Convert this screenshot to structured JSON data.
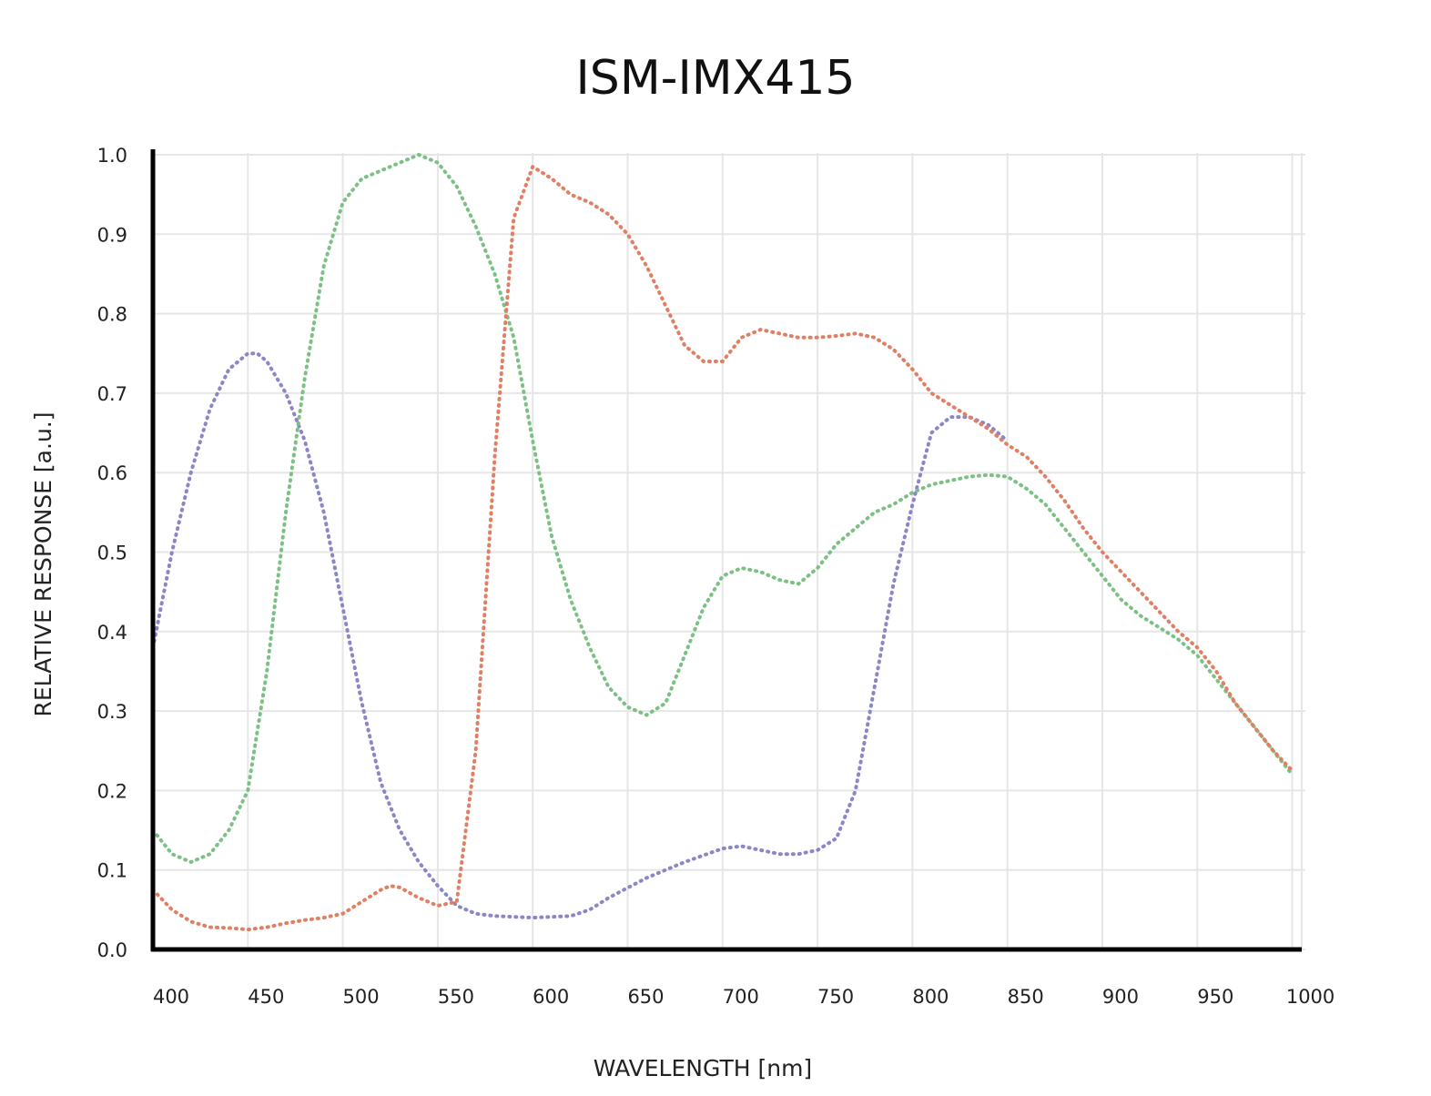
{
  "chart_data": {
    "type": "line",
    "title": "ISM-IMX415",
    "xlabel": "WAVELENGTH [nm]",
    "ylabel": "RELATIVE RESPONSE [a.u.]",
    "xlim": [
      400,
      1005
    ],
    "ylim": [
      0,
      1.0
    ],
    "x_ticks": [
      "400",
      "450",
      "500",
      "550",
      "600",
      "650",
      "700",
      "750",
      "800",
      "850",
      "900",
      "950",
      "1000"
    ],
    "y_ticks": [
      "0.0",
      "0.1",
      "0.2",
      "0.3",
      "0.4",
      "0.5",
      "0.6",
      "0.7",
      "0.8",
      "0.9",
      "1.0"
    ],
    "grid": true,
    "legend": "none",
    "series": [
      {
        "color": "#8a86c8",
        "points": [
          [
            400,
            0.38
          ],
          [
            410,
            0.5
          ],
          [
            420,
            0.6
          ],
          [
            430,
            0.68
          ],
          [
            440,
            0.73
          ],
          [
            450,
            0.75
          ],
          [
            455,
            0.75
          ],
          [
            460,
            0.74
          ],
          [
            470,
            0.7
          ],
          [
            480,
            0.64
          ],
          [
            490,
            0.55
          ],
          [
            500,
            0.43
          ],
          [
            510,
            0.31
          ],
          [
            520,
            0.21
          ],
          [
            530,
            0.15
          ],
          [
            540,
            0.11
          ],
          [
            550,
            0.08
          ],
          [
            560,
            0.055
          ],
          [
            570,
            0.045
          ],
          [
            580,
            0.042
          ],
          [
            600,
            0.04
          ],
          [
            620,
            0.042
          ],
          [
            630,
            0.05
          ],
          [
            640,
            0.065
          ],
          [
            660,
            0.09
          ],
          [
            680,
            0.11
          ],
          [
            700,
            0.127
          ],
          [
            710,
            0.13
          ],
          [
            720,
            0.125
          ],
          [
            730,
            0.12
          ],
          [
            740,
            0.12
          ],
          [
            750,
            0.125
          ],
          [
            760,
            0.14
          ],
          [
            770,
            0.2
          ],
          [
            780,
            0.33
          ],
          [
            790,
            0.46
          ],
          [
            800,
            0.56
          ],
          [
            810,
            0.65
          ],
          [
            820,
            0.67
          ],
          [
            830,
            0.67
          ],
          [
            840,
            0.66
          ],
          [
            850,
            0.64
          ]
        ]
      },
      {
        "color": "#7cc184",
        "points": [
          [
            400,
            0.15
          ],
          [
            410,
            0.12
          ],
          [
            420,
            0.11
          ],
          [
            430,
            0.12
          ],
          [
            440,
            0.15
          ],
          [
            450,
            0.2
          ],
          [
            460,
            0.35
          ],
          [
            470,
            0.55
          ],
          [
            480,
            0.72
          ],
          [
            490,
            0.86
          ],
          [
            500,
            0.94
          ],
          [
            510,
            0.97
          ],
          [
            520,
            0.98
          ],
          [
            530,
            0.99
          ],
          [
            540,
            1.0
          ],
          [
            550,
            0.99
          ],
          [
            560,
            0.96
          ],
          [
            570,
            0.91
          ],
          [
            580,
            0.85
          ],
          [
            590,
            0.77
          ],
          [
            600,
            0.64
          ],
          [
            610,
            0.52
          ],
          [
            620,
            0.44
          ],
          [
            630,
            0.38
          ],
          [
            640,
            0.33
          ],
          [
            650,
            0.305
          ],
          [
            660,
            0.295
          ],
          [
            670,
            0.31
          ],
          [
            680,
            0.37
          ],
          [
            690,
            0.43
          ],
          [
            700,
            0.47
          ],
          [
            710,
            0.48
          ],
          [
            720,
            0.475
          ],
          [
            730,
            0.465
          ],
          [
            740,
            0.46
          ],
          [
            750,
            0.48
          ],
          [
            760,
            0.51
          ],
          [
            770,
            0.53
          ],
          [
            780,
            0.55
          ],
          [
            790,
            0.56
          ],
          [
            800,
            0.575
          ],
          [
            810,
            0.585
          ],
          [
            820,
            0.59
          ],
          [
            830,
            0.595
          ],
          [
            840,
            0.597
          ],
          [
            850,
            0.595
          ],
          [
            860,
            0.58
          ],
          [
            870,
            0.56
          ],
          [
            880,
            0.53
          ],
          [
            890,
            0.5
          ],
          [
            900,
            0.47
          ],
          [
            910,
            0.44
          ],
          [
            920,
            0.42
          ],
          [
            930,
            0.405
          ],
          [
            940,
            0.39
          ],
          [
            950,
            0.37
          ],
          [
            960,
            0.34
          ],
          [
            970,
            0.31
          ],
          [
            980,
            0.28
          ],
          [
            990,
            0.25
          ],
          [
            1000,
            0.22
          ]
        ]
      },
      {
        "color": "#e07f64",
        "points": [
          [
            400,
            0.075
          ],
          [
            410,
            0.05
          ],
          [
            420,
            0.035
          ],
          [
            430,
            0.028
          ],
          [
            440,
            0.027
          ],
          [
            450,
            0.025
          ],
          [
            460,
            0.028
          ],
          [
            470,
            0.033
          ],
          [
            480,
            0.037
          ],
          [
            490,
            0.04
          ],
          [
            500,
            0.045
          ],
          [
            510,
            0.06
          ],
          [
            520,
            0.075
          ],
          [
            525,
            0.08
          ],
          [
            530,
            0.078
          ],
          [
            540,
            0.065
          ],
          [
            550,
            0.055
          ],
          [
            560,
            0.06
          ],
          [
            570,
            0.25
          ],
          [
            580,
            0.62
          ],
          [
            590,
            0.92
          ],
          [
            600,
            0.985
          ],
          [
            610,
            0.97
          ],
          [
            620,
            0.95
          ],
          [
            630,
            0.94
          ],
          [
            640,
            0.925
          ],
          [
            650,
            0.9
          ],
          [
            660,
            0.86
          ],
          [
            670,
            0.81
          ],
          [
            680,
            0.76
          ],
          [
            690,
            0.74
          ],
          [
            700,
            0.74
          ],
          [
            710,
            0.77
          ],
          [
            720,
            0.78
          ],
          [
            730,
            0.775
          ],
          [
            740,
            0.77
          ],
          [
            750,
            0.77
          ],
          [
            760,
            0.772
          ],
          [
            770,
            0.775
          ],
          [
            780,
            0.77
          ],
          [
            790,
            0.755
          ],
          [
            800,
            0.73
          ],
          [
            810,
            0.7
          ],
          [
            820,
            0.685
          ],
          [
            830,
            0.67
          ],
          [
            840,
            0.655
          ],
          [
            850,
            0.635
          ],
          [
            860,
            0.62
          ],
          [
            870,
            0.595
          ],
          [
            880,
            0.565
          ],
          [
            890,
            0.53
          ],
          [
            900,
            0.5
          ],
          [
            910,
            0.475
          ],
          [
            920,
            0.45
          ],
          [
            930,
            0.425
          ],
          [
            940,
            0.4
          ],
          [
            950,
            0.38
          ],
          [
            960,
            0.35
          ],
          [
            970,
            0.31
          ],
          [
            980,
            0.28
          ],
          [
            990,
            0.25
          ],
          [
            1000,
            0.225
          ]
        ]
      }
    ]
  }
}
